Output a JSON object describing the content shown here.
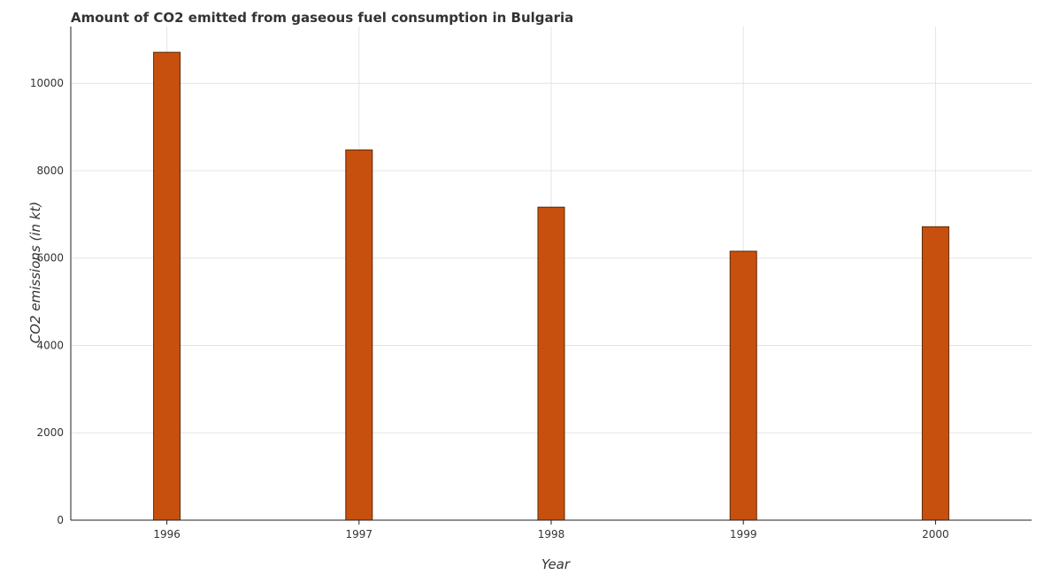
{
  "colors": {
    "bar_fill": "#c8500f",
    "bar_stroke": "#5a2600",
    "grid": "#e4e4e4",
    "text": "#333333"
  },
  "chart_data": {
    "type": "bar",
    "title": "Amount of CO2 emitted from gaseous fuel consumption in Bulgaria",
    "xlabel": "Year",
    "ylabel": "CO2 emissions (in kt)",
    "categories": [
      "1996",
      "1997",
      "1998",
      "1999",
      "2000"
    ],
    "values": [
      10710,
      8474,
      7165,
      6156,
      6717
    ],
    "ylim": [
      0,
      11300
    ],
    "yticks": [
      0,
      2000,
      4000,
      6000,
      8000,
      10000
    ],
    "grid": true,
    "legend": "none"
  }
}
